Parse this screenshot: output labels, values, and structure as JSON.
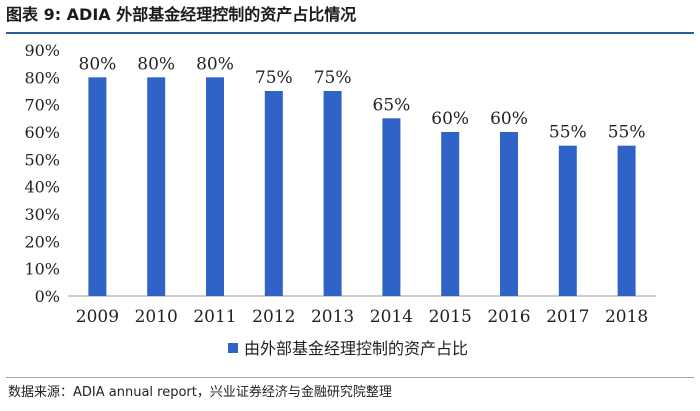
{
  "header": {
    "title": "图表 9:  ADIA 外部基金经理控制的资产占比情况"
  },
  "chart_data": {
    "type": "bar",
    "title": "",
    "xlabel": "",
    "ylabel": "",
    "categories": [
      "2009",
      "2010",
      "2011",
      "2012",
      "2013",
      "2014",
      "2015",
      "2016",
      "2017",
      "2018"
    ],
    "series": [
      {
        "name": "由外部基金经理控制的资产占比",
        "values": [
          80,
          80,
          80,
          75,
          75,
          65,
          60,
          60,
          55,
          55
        ],
        "data_labels": [
          "80%",
          "80%",
          "80%",
          "75%",
          "75%",
          "65%",
          "60%",
          "60%",
          "55%",
          "55%"
        ]
      }
    ],
    "ylim": [
      0,
      90
    ],
    "y_ticks": [
      0,
      10,
      20,
      30,
      40,
      50,
      60,
      70,
      80,
      90
    ],
    "y_tick_labels": [
      "0%",
      "10%",
      "20%",
      "30%",
      "40%",
      "50%",
      "60%",
      "70%",
      "80%",
      "90%"
    ],
    "grid": false,
    "legend_position": "bottom",
    "bar_color": "#2f63c7"
  },
  "footer": {
    "source": "数据来源：ADIA annual report，兴业证券经济与金融研究院整理"
  }
}
